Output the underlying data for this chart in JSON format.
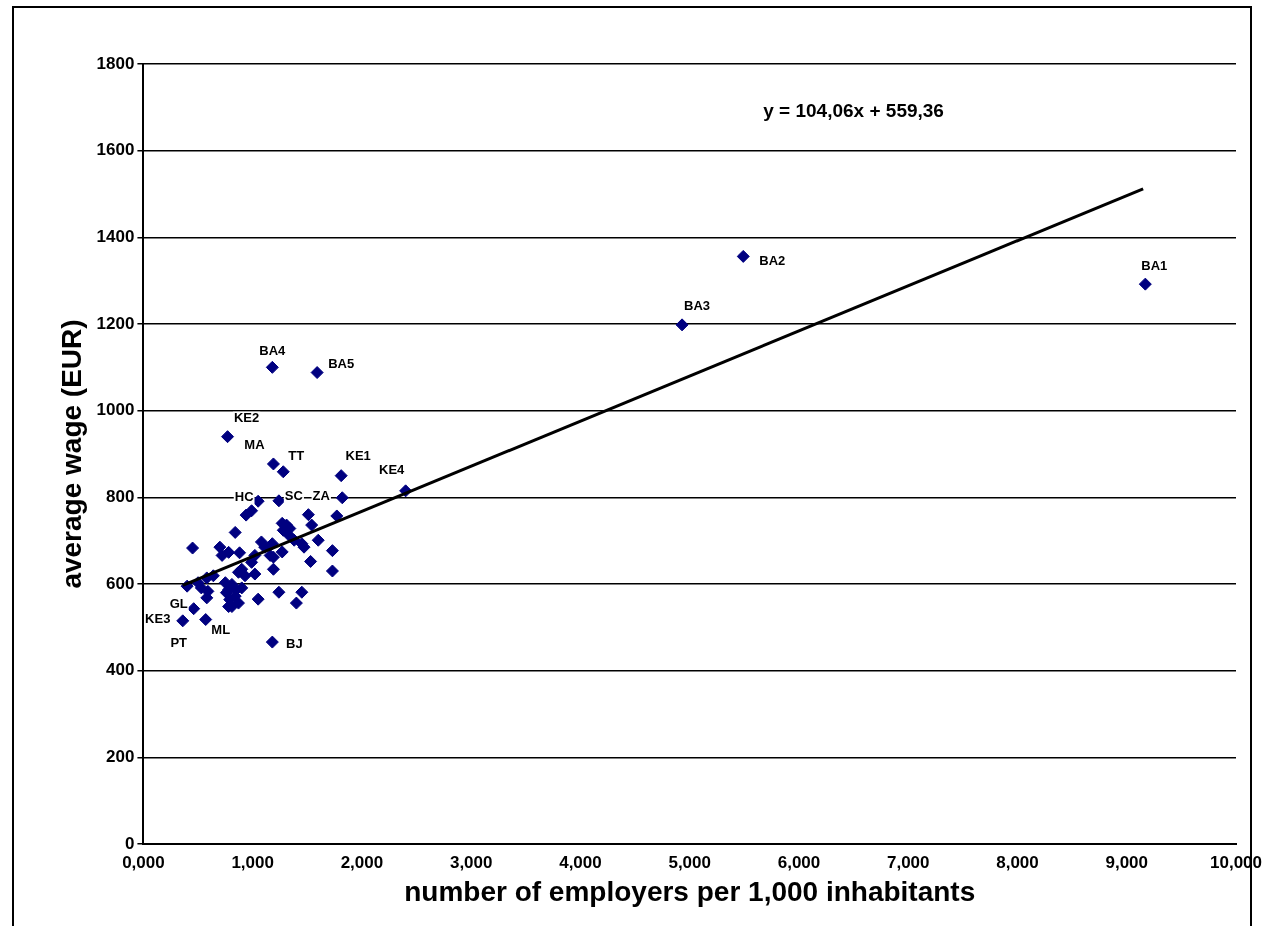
{
  "chart_data": {
    "type": "scatter",
    "xlabel": "number of employers per 1,000 inhabitants",
    "ylabel": "average wage (EUR)",
    "xlim": [
      0,
      10
    ],
    "ylim": [
      0,
      1800
    ],
    "xticks": [
      {
        "value": 0,
        "label": "0,000"
      },
      {
        "value": 1,
        "label": "1,000"
      },
      {
        "value": 2,
        "label": "2,000"
      },
      {
        "value": 3,
        "label": "3,000"
      },
      {
        "value": 4,
        "label": "4,000"
      },
      {
        "value": 5,
        "label": "5,000"
      },
      {
        "value": 6,
        "label": "6,000"
      },
      {
        "value": 7,
        "label": "7,000"
      },
      {
        "value": 8,
        "label": "8,000"
      },
      {
        "value": 9,
        "label": "9,000"
      },
      {
        "value": 10,
        "label": "10,000"
      }
    ],
    "yticks": [
      0,
      200,
      400,
      600,
      800,
      1000,
      1200,
      1400,
      1600,
      1800
    ],
    "grid": "y",
    "legend": false,
    "marker": "diamond",
    "series": [
      {
        "color": "#000080",
        "x": [
          9.17,
          5.49,
          4.93,
          1.18,
          1.59,
          0.77,
          1.19,
          1.28,
          1.81,
          2.4,
          1.82,
          1.24,
          1.05,
          0.99,
          0.94,
          1.51,
          1.77,
          1.54,
          1.27,
          1.31,
          1.34,
          1.28,
          1.33,
          0.84,
          1.38,
          1.45,
          1.47,
          1.6,
          0.45,
          1.08,
          1.18,
          1.11,
          1.73,
          0.7,
          0.78,
          0.72,
          0.88,
          1.27,
          1.16,
          1.19,
          1.53,
          1.02,
          0.99,
          1.02,
          0.9,
          0.87,
          0.93,
          1.19,
          1.73,
          0.5,
          0.58,
          0.64,
          0.53,
          0.4,
          0.75,
          0.81,
          0.78,
          0.85,
          0.9,
          0.84,
          0.76,
          0.79,
          0.87,
          0.81,
          0.78,
          0.59,
          0.58,
          1.05,
          1.24,
          1.45,
          1.4,
          0.46,
          0.36,
          0.57,
          1.18
        ],
        "values": [
          1292,
          1356,
          1198,
          1100,
          1088,
          940,
          877,
          859,
          850,
          815,
          799,
          792,
          791,
          769,
          759,
          760,
          757,
          736,
          740,
          736,
          728,
          724,
          713,
          719,
          701,
          693,
          685,
          701,
          683,
          697,
          693,
          685,
          677,
          685,
          673,
          666,
          672,
          674,
          666,
          662,
          652,
          666,
          650,
          623,
          634,
          627,
          619,
          634,
          630,
          603,
          614,
          619,
          591,
          595,
          603,
          599,
          587,
          587,
          591,
          572,
          580,
          564,
          556,
          548,
          548,
          583,
          568,
          565,
          581,
          581,
          556,
          543,
          515,
          518,
          466
        ]
      },
      {
        "type": "line",
        "color": "#000000",
        "marker": "none",
        "x": [
          0.36,
          9.15
        ],
        "values": [
          597,
          1512
        ]
      }
    ],
    "annotations": [
      {
        "text": "BA1",
        "x": 9.17,
        "y": 1292
      },
      {
        "text": "BA2",
        "x": 5.49,
        "y": 1356
      },
      {
        "text": "BA3",
        "x": 4.93,
        "y": 1198
      },
      {
        "text": "BA4",
        "x": 1.18,
        "y": 1100
      },
      {
        "text": "BA5",
        "x": 1.59,
        "y": 1088
      },
      {
        "text": "KE2",
        "x": 0.77,
        "y": 940
      },
      {
        "text": "MA",
        "x": 1.19,
        "y": 877
      },
      {
        "text": "TT",
        "x": 1.28,
        "y": 859
      },
      {
        "text": "KE1",
        "x": 1.81,
        "y": 850
      },
      {
        "text": "KE4",
        "x": 2.4,
        "y": 815
      },
      {
        "text": "ZA",
        "x": 1.82,
        "y": 799
      },
      {
        "text": "SC",
        "x": 1.24,
        "y": 792
      },
      {
        "text": "HC",
        "x": 1.05,
        "y": 791
      },
      {
        "text": "GL",
        "x": 0.46,
        "y": 543
      },
      {
        "text": "KE3",
        "x": 0.36,
        "y": 515
      },
      {
        "text": "PT",
        "x": 0.36,
        "y": 515
      },
      {
        "text": "ML",
        "x": 0.57,
        "y": 518
      },
      {
        "text": "BJ",
        "x": 1.18,
        "y": 466
      },
      "y = 104,06x + 559,36"
    ]
  }
}
